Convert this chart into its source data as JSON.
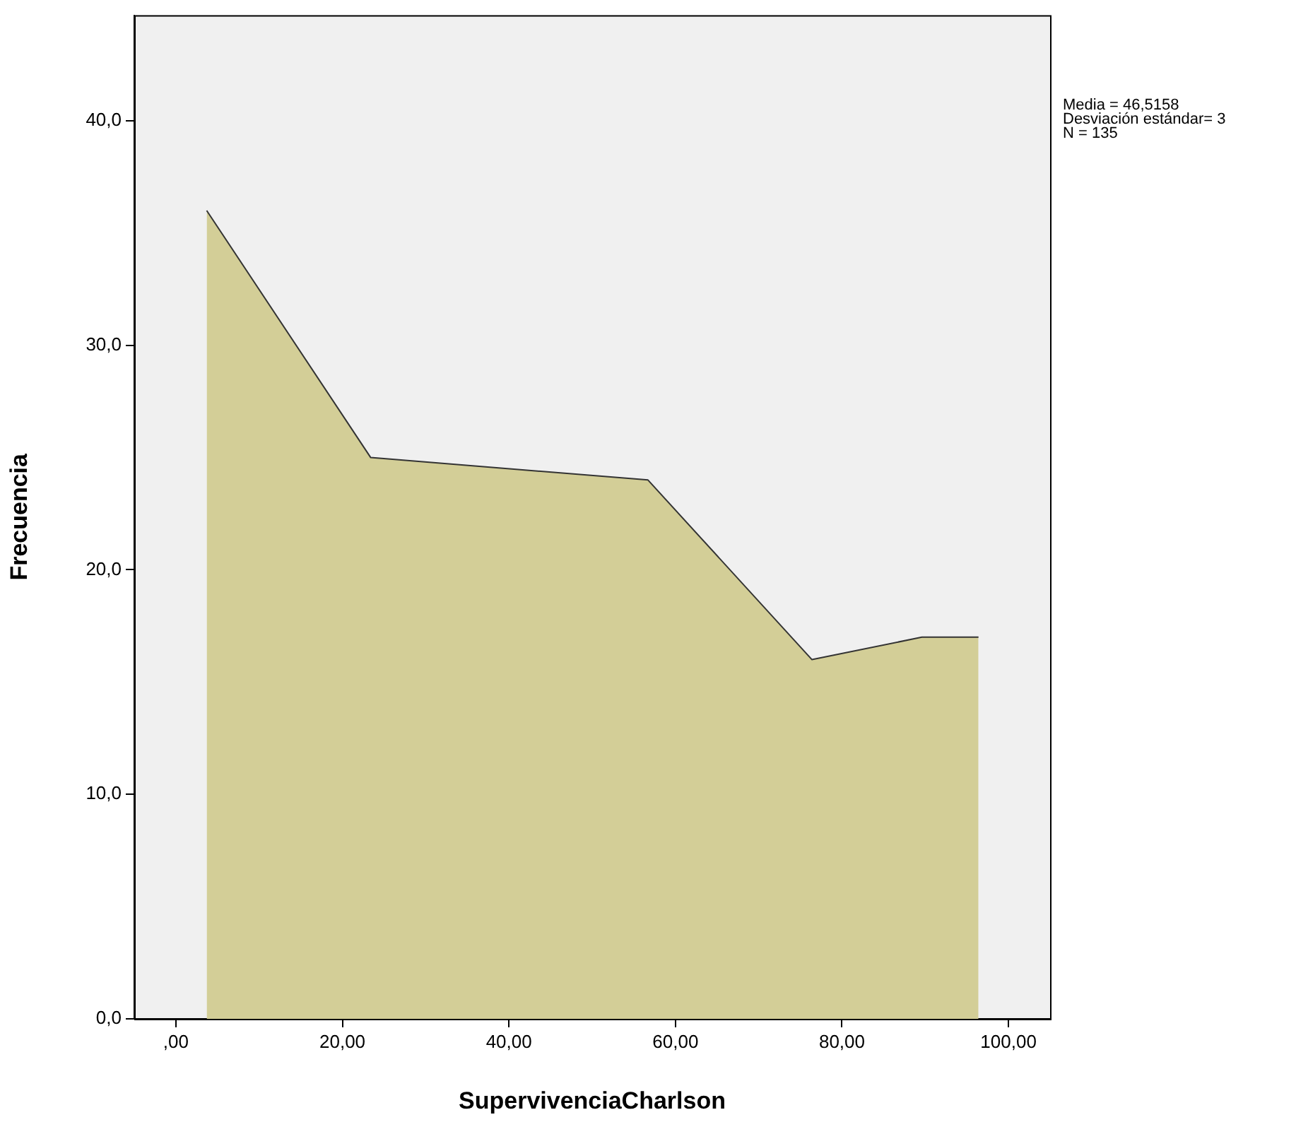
{
  "chart_data": {
    "type": "area",
    "xlabel": "SupervivenciaCharlson",
    "ylabel": "Frecuencia",
    "x": [
      3.7,
      23.4,
      56.7,
      76.4,
      89.6,
      96.4
    ],
    "series": [
      {
        "color": "#d3ce97",
        "values": [
          36,
          25,
          24,
          16,
          17,
          17
        ]
      }
    ],
    "xlim": [
      -5,
      105
    ],
    "xticks": [
      {
        "value": 0,
        "label": ",00"
      },
      {
        "value": 20,
        "label": "20,00"
      },
      {
        "value": 40,
        "label": "40,00"
      },
      {
        "value": 60,
        "label": "60,00"
      },
      {
        "value": 80,
        "label": "80,00"
      },
      {
        "value": 100,
        "label": "100,00"
      }
    ],
    "ylim": [
      0,
      44.7
    ],
    "yticks": [
      {
        "value": 0,
        "label": "0,0"
      },
      {
        "value": 10,
        "label": "10,0"
      },
      {
        "value": 20,
        "label": "20,0"
      },
      {
        "value": 30,
        "label": "30,0"
      },
      {
        "value": 40,
        "label": "40,0"
      }
    ],
    "annotations": [
      "Media = 46,5158",
      "Desviación estándar= 3",
      "N = 135"
    ],
    "grid": false,
    "legend": false
  }
}
